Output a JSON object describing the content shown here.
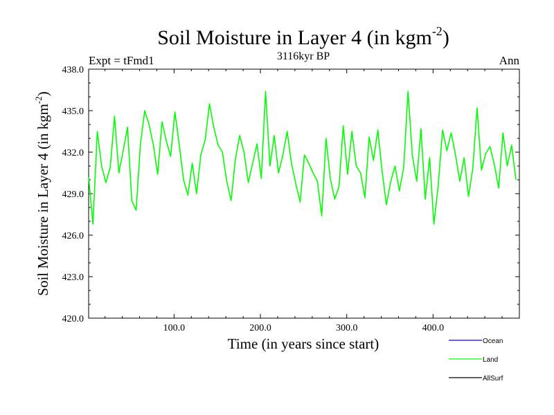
{
  "chart_data": {
    "type": "line",
    "title": "Soil Moisture in Layer 4 (in kgm",
    "title_sup": "-2",
    "title_end": ")",
    "subtitle": "3116kyr BP",
    "left_label": "Expt = tFmd1",
    "right_label": "Ann",
    "xlabel": "Time (in years since start)",
    "ylabel": "Soil Moisture in Layer 4 (in kgm",
    "ylabel_sup": "-2",
    "ylabel_end": ")",
    "xlim": [
      1,
      500
    ],
    "ylim": [
      420.0,
      438.0
    ],
    "x_ticks": [
      100,
      200,
      300,
      400
    ],
    "x_tick_labels": [
      "100.0",
      "200.0",
      "300.0",
      "400.0"
    ],
    "y_ticks": [
      420,
      423,
      426,
      429,
      432,
      435,
      438
    ],
    "y_tick_labels": [
      "420.0",
      "423.0",
      "426.0",
      "429.0",
      "432.0",
      "435.0",
      "438.0"
    ],
    "legend": [
      {
        "name": "Ocean",
        "color": "#0000ff"
      },
      {
        "name": "Land",
        "color": "#00ff00"
      },
      {
        "name": "AllSurf",
        "color": "#000000"
      }
    ],
    "series": [
      {
        "name": "Land",
        "color": "#00ff00",
        "x_start": 1,
        "x_step": 5,
        "values": [
          430.2,
          426.8,
          433.5,
          431.0,
          429.8,
          430.9,
          434.6,
          430.5,
          432.1,
          433.8,
          428.5,
          427.8,
          432.6,
          435.0,
          434.0,
          432.5,
          430.4,
          434.2,
          432.8,
          431.7,
          434.9,
          432.5,
          430.0,
          428.9,
          431.2,
          429.0,
          431.8,
          432.9,
          435.5,
          433.8,
          432.5,
          432.0,
          429.9,
          428.5,
          431.5,
          433.2,
          432.0,
          429.8,
          431.2,
          432.6,
          430.1,
          436.4,
          431.0,
          433.2,
          430.5,
          431.8,
          433.5,
          431.2,
          429.7,
          428.4,
          431.8,
          431.2,
          430.5,
          429.9,
          427.4,
          433.0,
          430.1,
          428.6,
          429.5,
          433.9,
          430.4,
          433.5,
          431.0,
          430.5,
          428.7,
          433.1,
          431.4,
          433.6,
          430.6,
          428.2,
          429.9,
          431.0,
          429.2,
          430.9,
          436.4,
          431.8,
          429.9,
          433.7,
          428.6,
          431.6,
          426.8,
          429.6,
          433.6,
          432.1,
          433.4,
          431.8,
          429.9,
          431.6,
          428.8,
          430.8,
          435.2,
          430.7,
          431.9,
          432.4,
          431.1,
          429.4,
          433.4,
          431.0,
          432.5,
          430.0
        ]
      }
    ]
  }
}
